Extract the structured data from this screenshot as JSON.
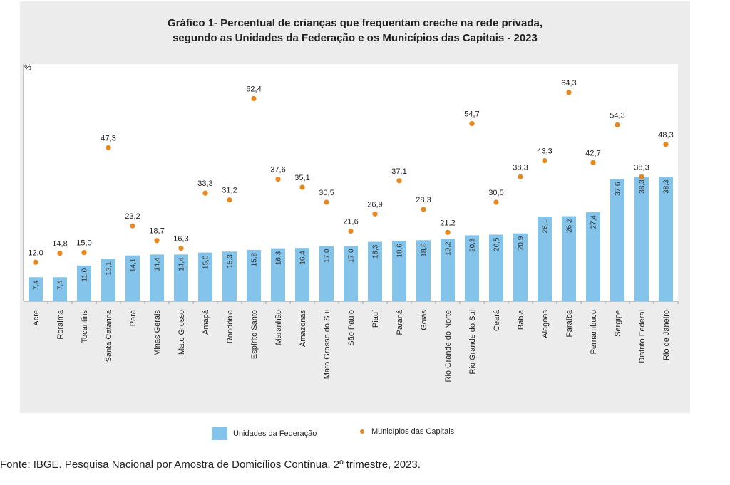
{
  "chart_data": {
    "type": "bar",
    "title_line1": "Gráfico 1- Percentual de crianças que frequentam creche na rede privada,",
    "title_line2": "segundo as Unidades da Federação e os Municípios das Capitais - 2023",
    "ylabel": "%",
    "ylim": [
      0,
      70
    ],
    "grid": false,
    "legend_position": "bottom",
    "categories": [
      "Acre",
      "Roraima",
      "Tocantins",
      "Santa Catarina",
      "Pará",
      "Minas Gerais",
      "Mato Grosso",
      "Amapá",
      "Rondônia",
      "Espírito Santo",
      "Maranhão",
      "Amazonas",
      "Mato Grosso do Sul",
      "São Paulo",
      "Piauí",
      "Paraná",
      "Goiás",
      "Rio Grande do Norte",
      "Rio Grande do Sul",
      "Ceará",
      "Bahia",
      "Alagoas",
      "Paraíba",
      "Pernambuco",
      "Sergipe",
      "Distrito Federal",
      "Rio de Janeiro"
    ],
    "series": [
      {
        "name": "Unidades da Federação",
        "type": "bar",
        "color": "#84c4ea",
        "values": [
          7.4,
          7.4,
          11.0,
          13.1,
          14.1,
          14.4,
          14.4,
          15.0,
          15.3,
          15.8,
          16.3,
          16.4,
          17.0,
          17.0,
          18.3,
          18.6,
          18.8,
          19.2,
          20.3,
          20.5,
          20.9,
          26.1,
          26.2,
          27.4,
          37.6,
          38.3,
          38.3
        ],
        "labels": [
          "7,4",
          "7,4",
          "11,0",
          "13,1",
          "14,1",
          "14,4",
          "14,4",
          "15,0",
          "15,3",
          "15,8",
          "16,3",
          "16,4",
          "17,0",
          "17,0",
          "18,3",
          "18,6",
          "18,8",
          "19,2",
          "20,3",
          "20,5",
          "20,9",
          "26,1",
          "26,2",
          "27,4",
          "37,6",
          "38,3",
          "38,3"
        ]
      },
      {
        "name": "Municípios das Capitais",
        "type": "scatter",
        "color": "#e8871d",
        "values": [
          12.0,
          14.8,
          15.0,
          47.3,
          23.2,
          18.7,
          16.3,
          33.3,
          31.2,
          62.4,
          37.6,
          35.1,
          30.5,
          21.6,
          26.9,
          37.1,
          28.3,
          21.2,
          54.7,
          30.5,
          38.3,
          43.3,
          64.3,
          42.7,
          54.3,
          38.3,
          48.3
        ],
        "labels": [
          "12,0",
          "14,8",
          "15,0",
          "47,3",
          "23,2",
          "18,7",
          "16,3",
          "33,3",
          "31,2",
          "62,4",
          "37,6",
          "35,1",
          "30,5",
          "21,6",
          "26,9",
          "37,1",
          "28,3",
          "21,2",
          "54,7",
          "30,5",
          "38,3",
          "43,3",
          "64,3",
          "42,7",
          "54,3",
          "38,3",
          "48,3"
        ]
      }
    ]
  },
  "legend": {
    "bars_label": "Unidades da Federação",
    "dots_label": "Municípios das Capitais"
  },
  "source": "Fonte: IBGE. Pesquisa Nacional por Amostra de Domicílios Contínua, 2º trimestre, 2023."
}
